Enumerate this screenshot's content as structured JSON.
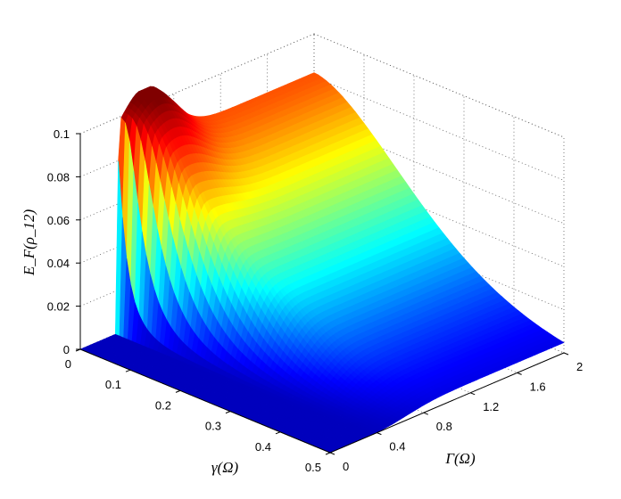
{
  "chart_data": {
    "type": "surface",
    "title": "",
    "colormap": "jet",
    "x_axis": {
      "label": "γ(Ω)",
      "range": [
        0,
        0.5
      ],
      "ticks": [
        "0",
        "0.1",
        "0.2",
        "0.3",
        "0.4",
        "0.5"
      ]
    },
    "y_axis": {
      "label": "Γ(Ω)",
      "range": [
        0,
        2
      ],
      "ticks": [
        "0",
        "0.4",
        "0.8",
        "1.2",
        "1.6",
        "2"
      ]
    },
    "z_axis": {
      "label": "E_F(ρ_12)",
      "range": [
        0,
        0.1
      ],
      "ticks": [
        "0",
        "0.02",
        "0.04",
        "0.06",
        "0.08",
        "0.1"
      ]
    },
    "grid": true,
    "surface_samples": [
      {
        "gamma": 0.0,
        "Gamma": 0.0,
        "EF": 0.0
      },
      {
        "gamma": 0.0,
        "Gamma": 0.1,
        "EF": 0.0
      },
      {
        "gamma": 0.0,
        "Gamma": 0.4,
        "EF": 0.0
      },
      {
        "gamma": 0.0,
        "Gamma": 0.55,
        "EF": 0.105
      },
      {
        "gamma": 0.0,
        "Gamma": 1.0,
        "EF": 0.09
      },
      {
        "gamma": 0.0,
        "Gamma": 1.5,
        "EF": 0.082
      },
      {
        "gamma": 0.0,
        "Gamma": 2.0,
        "EF": 0.081
      },
      {
        "gamma": 0.25,
        "Gamma": 2.0,
        "EF": 0.03
      },
      {
        "gamma": 0.5,
        "Gamma": 2.0,
        "EF": 0.0
      },
      {
        "gamma": 0.5,
        "Gamma": 0.0,
        "EF": 0.0
      }
    ]
  }
}
